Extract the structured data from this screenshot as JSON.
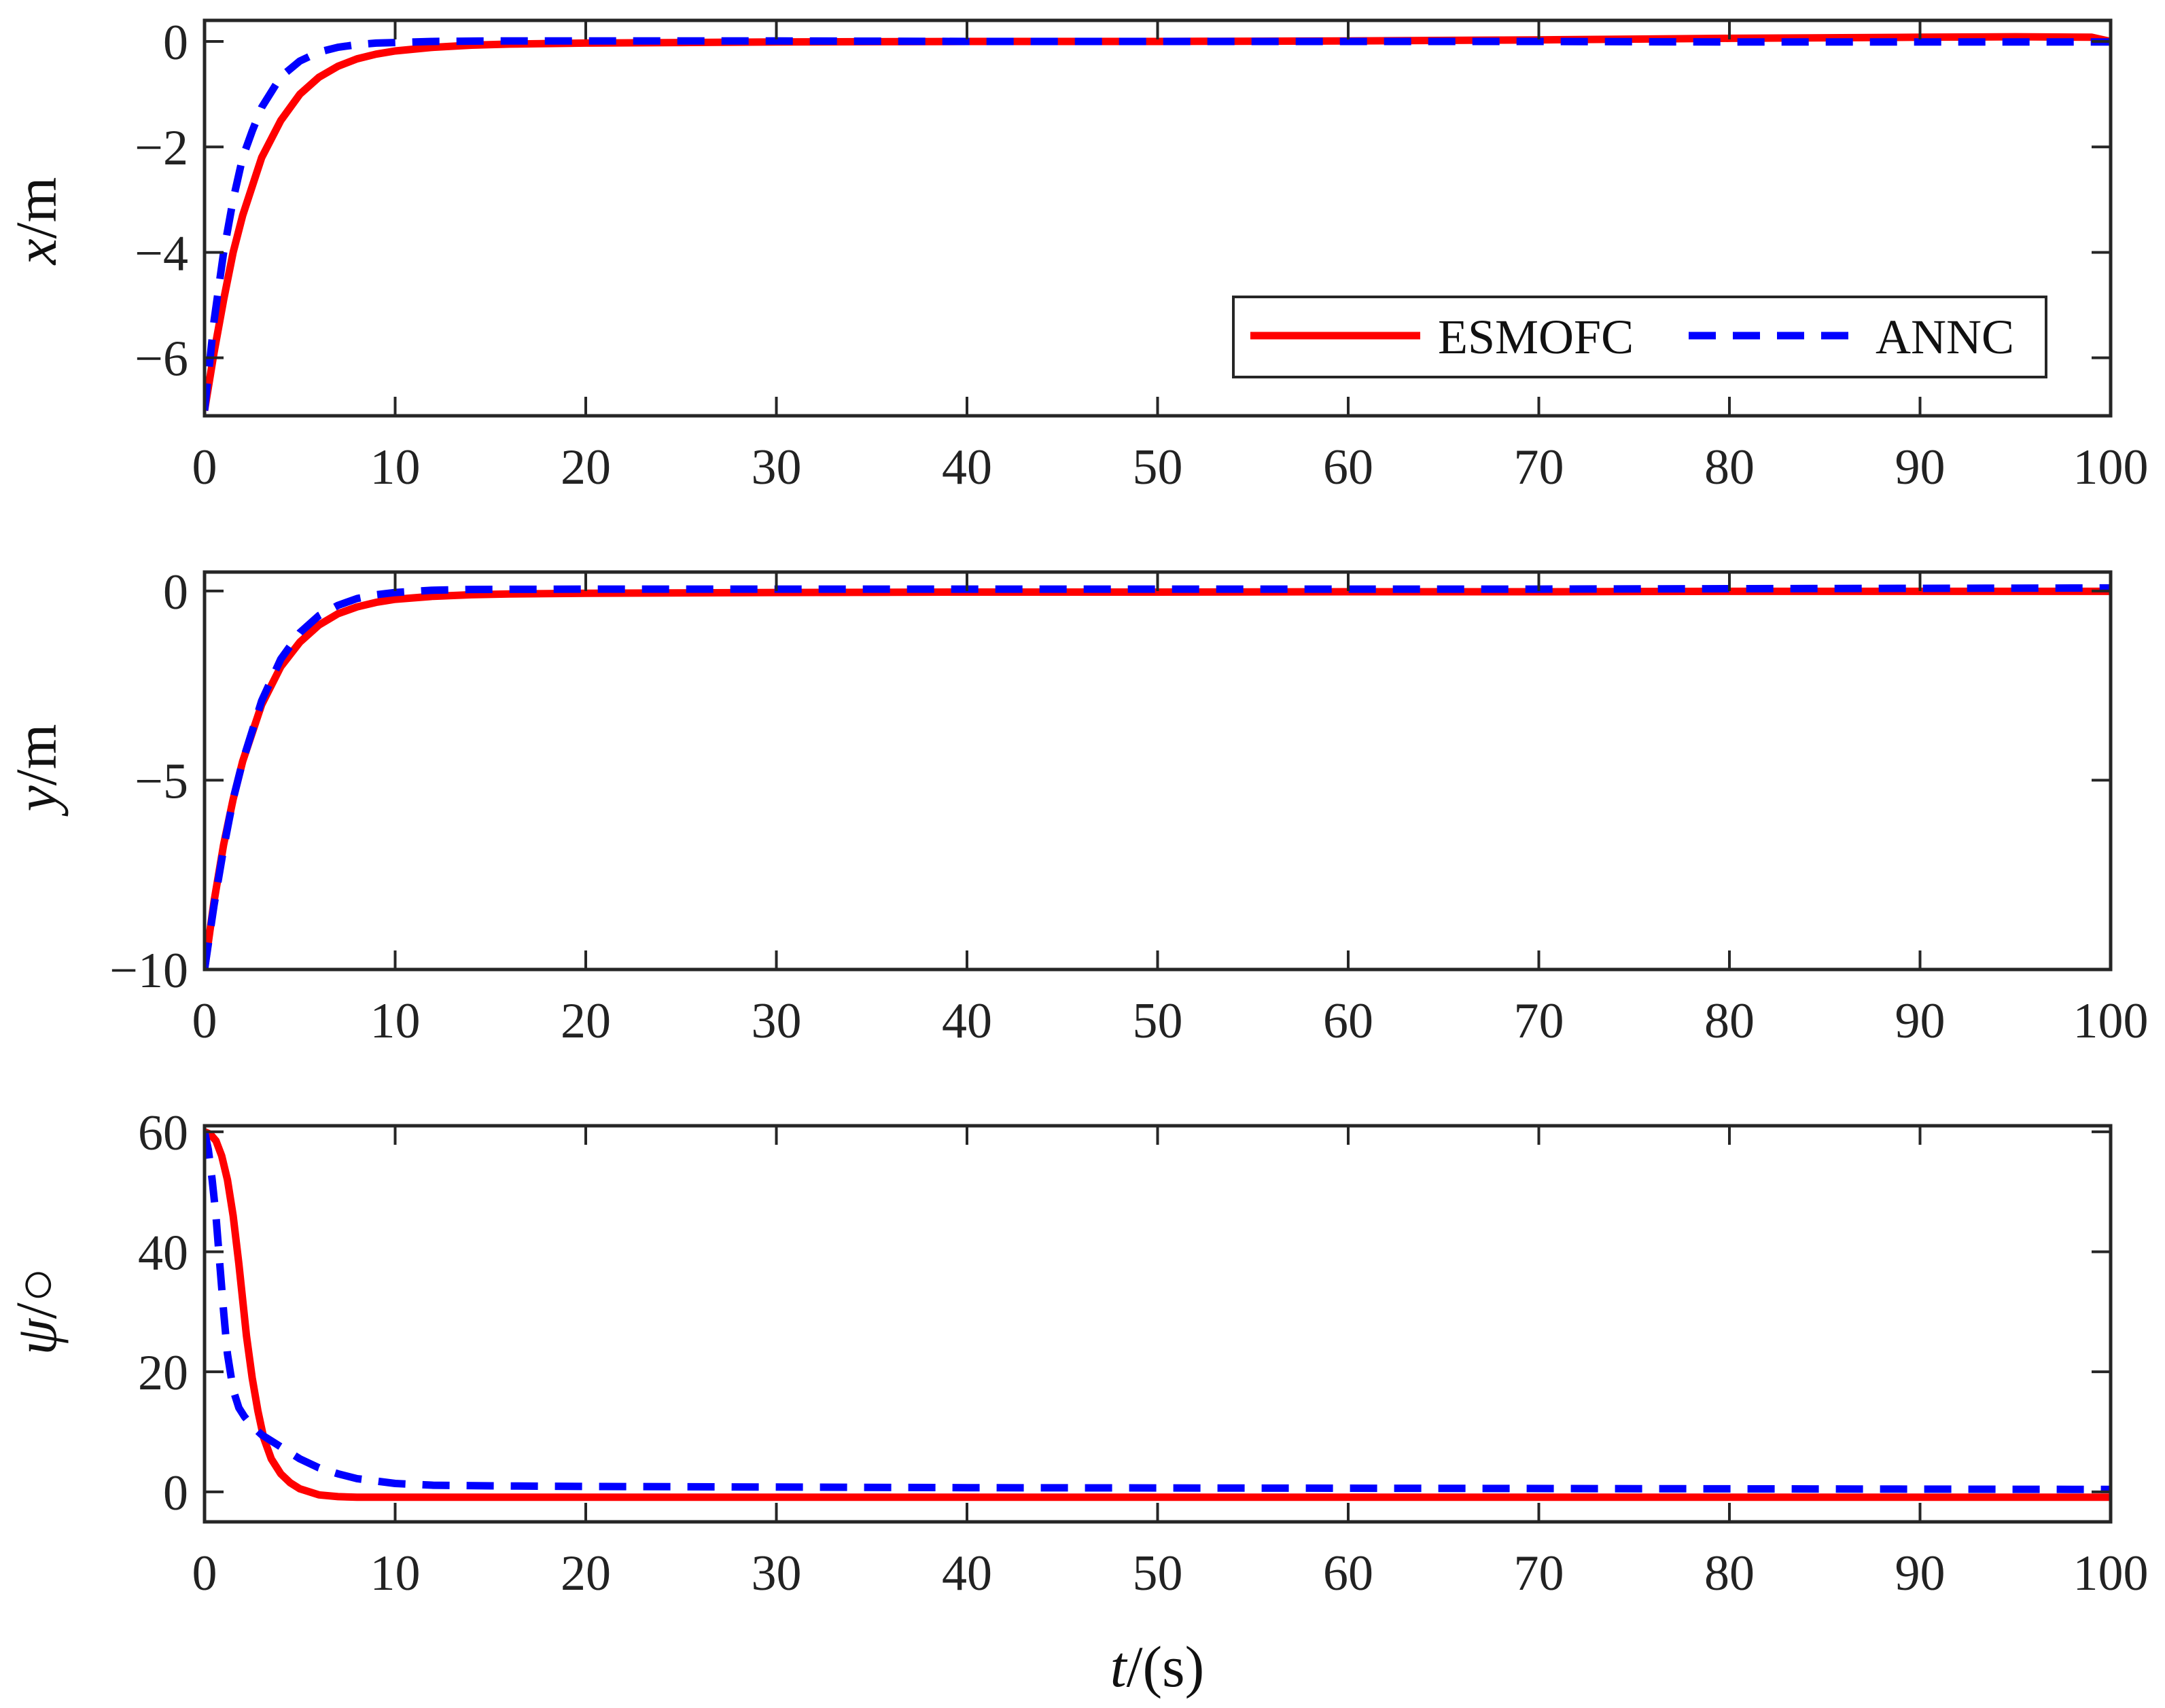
{
  "chart_data": [
    {
      "type": "line",
      "panel": "top",
      "ylabel_var": "x",
      "ylabel_unit": "/m",
      "xlim": [
        0,
        100
      ],
      "ylim": [
        -7.1,
        0.4
      ],
      "x_ticks": [
        0,
        10,
        20,
        30,
        40,
        50,
        60,
        70,
        80,
        90,
        100
      ],
      "y_ticks": [
        0,
        -2,
        -4,
        -6
      ],
      "y_tick_labels": [
        "0",
        "−2",
        "−4",
        "−6"
      ],
      "legend": {
        "placement": "bottom-right",
        "entries": [
          "ESMOFC",
          "ANNC"
        ]
      },
      "series": [
        {
          "name": "ESMOFC",
          "color": "#ff0000",
          "style": "solid",
          "x": [
            0,
            0.5,
            1,
            1.5,
            2,
            3,
            4,
            5,
            6,
            7,
            8,
            9,
            10,
            12,
            14,
            16,
            20,
            25,
            30,
            40,
            50,
            60,
            70,
            80,
            90,
            95,
            99,
            100
          ],
          "y": [
            -7.0,
            -5.9,
            -4.9,
            -4.0,
            -3.3,
            -2.2,
            -1.5,
            -1.0,
            -0.68,
            -0.47,
            -0.33,
            -0.24,
            -0.18,
            -0.11,
            -0.07,
            -0.05,
            -0.03,
            -0.02,
            -0.01,
            0.0,
            0.0,
            0.01,
            0.03,
            0.06,
            0.08,
            0.09,
            0.08,
            0.0
          ]
        },
        {
          "name": "ANNC",
          "color": "#0000ff",
          "style": "dashed",
          "x": [
            0,
            0.5,
            1,
            1.5,
            2,
            2.5,
            3,
            4,
            5,
            6,
            7,
            8,
            9,
            10,
            12,
            15,
            20,
            30,
            40,
            50,
            60,
            70,
            80,
            90,
            100
          ],
          "y": [
            -7.0,
            -5.3,
            -4.0,
            -3.0,
            -2.2,
            -1.7,
            -1.25,
            -0.67,
            -0.37,
            -0.2,
            -0.11,
            -0.06,
            -0.03,
            -0.02,
            0.0,
            0.01,
            0.01,
            0.01,
            0.0,
            0.0,
            0.0,
            0.0,
            -0.01,
            -0.01,
            -0.01
          ]
        }
      ]
    },
    {
      "type": "line",
      "panel": "middle",
      "ylabel_var": "y",
      "ylabel_unit": "/m",
      "xlim": [
        0,
        100
      ],
      "ylim": [
        -10,
        0.5
      ],
      "x_ticks": [
        0,
        10,
        20,
        30,
        40,
        50,
        60,
        70,
        80,
        90,
        100
      ],
      "y_ticks": [
        0,
        -5,
        -10
      ],
      "y_tick_labels": [
        "0",
        "−5",
        "−10"
      ],
      "series": [
        {
          "name": "ESMOFC",
          "color": "#ff0000",
          "style": "solid",
          "x": [
            0,
            0.5,
            1,
            1.5,
            2,
            3,
            4,
            5,
            6,
            7,
            8,
            9,
            10,
            12,
            14,
            16,
            20,
            30,
            40,
            50,
            60,
            70,
            80,
            90,
            100
          ],
          "y": [
            -10.0,
            -8.2,
            -6.7,
            -5.5,
            -4.5,
            -3.0,
            -2.0,
            -1.35,
            -0.9,
            -0.6,
            -0.42,
            -0.3,
            -0.22,
            -0.14,
            -0.1,
            -0.08,
            -0.06,
            -0.04,
            -0.03,
            -0.03,
            -0.02,
            -0.02,
            -0.01,
            -0.01,
            -0.01
          ]
        },
        {
          "name": "ANNC",
          "color": "#0000ff",
          "style": "dashed",
          "x": [
            0,
            0.5,
            1,
            1.5,
            2,
            3,
            4,
            5,
            6,
            7,
            8,
            9,
            10,
            12,
            14,
            20,
            30,
            40,
            50,
            60,
            70,
            80,
            90,
            100
          ],
          "y": [
            -10.0,
            -8.3,
            -6.8,
            -5.5,
            -4.5,
            -2.9,
            -1.8,
            -1.1,
            -0.65,
            -0.38,
            -0.2,
            -0.1,
            -0.04,
            0.02,
            0.04,
            0.05,
            0.05,
            0.05,
            0.05,
            0.05,
            0.05,
            0.06,
            0.07,
            0.08
          ]
        }
      ]
    },
    {
      "type": "line",
      "panel": "bottom",
      "ylabel_var": "ψ",
      "ylabel_unit": "/○",
      "xlabel_var": "t",
      "xlabel_unit": "/(s)",
      "xlim": [
        0,
        100
      ],
      "ylim": [
        -5,
        61
      ],
      "x_ticks": [
        0,
        10,
        20,
        30,
        40,
        50,
        60,
        70,
        80,
        90,
        100
      ],
      "y_ticks": [
        60,
        40,
        20,
        0
      ],
      "y_tick_labels": [
        "60",
        "40",
        "20",
        "0"
      ],
      "series": [
        {
          "name": "ESMOFC",
          "color": "#ff0000",
          "style": "solid",
          "x": [
            0,
            0.3,
            0.6,
            0.9,
            1.2,
            1.5,
            1.8,
            2.0,
            2.2,
            2.5,
            2.8,
            3.1,
            3.5,
            4,
            4.5,
            5,
            6,
            7,
            8,
            10,
            15,
            20,
            40,
            60,
            80,
            100
          ],
          "y": [
            60,
            59.6,
            58.5,
            56,
            52,
            46,
            38,
            32,
            26,
            19,
            13.5,
            9,
            5.5,
            3,
            1.5,
            0.5,
            -0.5,
            -0.8,
            -0.9,
            -0.9,
            -0.9,
            -0.9,
            -0.9,
            -0.9,
            -0.9,
            -0.9
          ]
        },
        {
          "name": "ANNC",
          "color": "#0000ff",
          "style": "dashed",
          "x": [
            0,
            0.2,
            0.4,
            0.6,
            0.8,
            1.0,
            1.2,
            1.5,
            1.8,
            2.1,
            2.5,
            3,
            4,
            5,
            6,
            7,
            8,
            10,
            12,
            15,
            20,
            30,
            40,
            60,
            80,
            100
          ],
          "y": [
            60,
            57,
            52,
            46,
            38,
            30,
            23,
            17,
            14,
            12.5,
            11,
            9.5,
            7.5,
            5.5,
            4.0,
            3.0,
            2.2,
            1.4,
            1.1,
            1.0,
            0.9,
            0.8,
            0.7,
            0.6,
            0.5,
            0.4
          ]
        }
      ]
    }
  ]
}
